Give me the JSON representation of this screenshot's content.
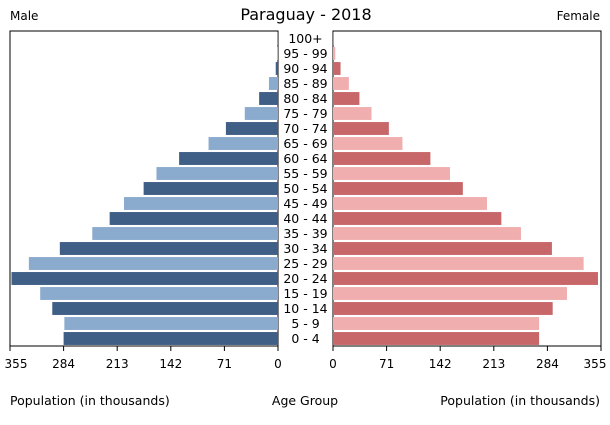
{
  "chart_data": {
    "type": "bar",
    "orientation": "horizontal-population-pyramid",
    "title": "Paraguay - 2018",
    "left_label": "Male",
    "right_label": "Female",
    "center_label": "Age Group",
    "xlabel_left": "Population (in thousands)",
    "xlabel_right": "Population (in thousands)",
    "xlim": [
      0,
      355
    ],
    "ticks": [
      0,
      71,
      142,
      213,
      284,
      355
    ],
    "tick_labels": [
      "0",
      "71",
      "142",
      "213",
      "284",
      "355"
    ],
    "grid": false,
    "categories": [
      "0 - 4",
      "5 - 9",
      "10 - 14",
      "15 - 19",
      "20 - 24",
      "25 - 29",
      "30 - 34",
      "35 - 39",
      "40 - 44",
      "45 - 49",
      "50 - 54",
      "55 - 59",
      "60 - 64",
      "65 - 69",
      "70 - 74",
      "75 - 79",
      "80 - 84",
      "85 - 89",
      "90 - 94",
      "95 - 99",
      "100+"
    ],
    "series": [
      {
        "name": "Male",
        "side": "left",
        "colors": [
          "#3f5f86",
          "#8aaace"
        ],
        "values": [
          284,
          283,
          299,
          315,
          353,
          330,
          289,
          246,
          223,
          204,
          178,
          161,
          131,
          92,
          69,
          44,
          25,
          12,
          3,
          1,
          0.5
        ]
      },
      {
        "name": "Female",
        "side": "right",
        "colors": [
          "#c8676a",
          "#f0aeae"
        ],
        "values": [
          273,
          273,
          291,
          310,
          351,
          332,
          290,
          249,
          223,
          204,
          172,
          155,
          129,
          92,
          74,
          51,
          35,
          21,
          10,
          3,
          1
        ]
      }
    ]
  }
}
